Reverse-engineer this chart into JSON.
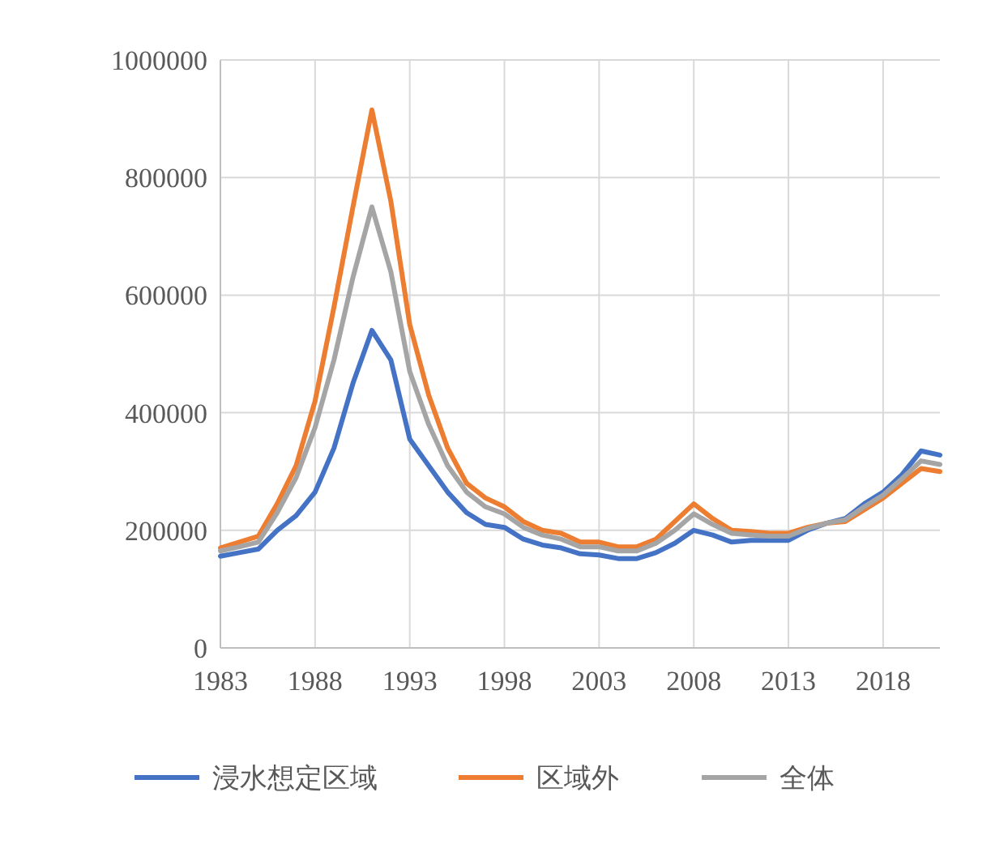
{
  "chart_data": {
    "type": "line",
    "x": [
      1983,
      1984,
      1985,
      1986,
      1987,
      1988,
      1989,
      1990,
      1991,
      1992,
      1993,
      1994,
      1995,
      1996,
      1997,
      1998,
      1999,
      2000,
      2001,
      2002,
      2003,
      2004,
      2005,
      2006,
      2007,
      2008,
      2009,
      2010,
      2011,
      2012,
      2013,
      2014,
      2015,
      2016,
      2017,
      2018,
      2019,
      2020,
      2021
    ],
    "series": [
      {
        "name": "浸水想定区域",
        "color": "#4472c4",
        "values": [
          156000,
          162000,
          168000,
          200000,
          225000,
          265000,
          340000,
          450000,
          540000,
          490000,
          355000,
          310000,
          265000,
          230000,
          210000,
          205000,
          185000,
          175000,
          170000,
          160000,
          158000,
          152000,
          152000,
          162000,
          178000,
          200000,
          192000,
          180000,
          183000,
          183000,
          183000,
          200000,
          212000,
          220000,
          245000,
          265000,
          295000,
          335000,
          328000
        ]
      },
      {
        "name": "区域外",
        "color": "#ed7d31",
        "values": [
          170000,
          180000,
          190000,
          245000,
          310000,
          420000,
          580000,
          750000,
          915000,
          760000,
          550000,
          430000,
          340000,
          280000,
          255000,
          240000,
          215000,
          200000,
          195000,
          180000,
          180000,
          172000,
          172000,
          185000,
          215000,
          245000,
          220000,
          200000,
          198000,
          195000,
          195000,
          205000,
          212000,
          215000,
          235000,
          255000,
          280000,
          305000,
          300000
        ]
      },
      {
        "name": "全体",
        "color": "#a5a5a5",
        "values": [
          165000,
          172000,
          180000,
          230000,
          290000,
          375000,
          490000,
          630000,
          750000,
          640000,
          470000,
          380000,
          310000,
          265000,
          240000,
          228000,
          205000,
          192000,
          185000,
          172000,
          172000,
          165000,
          165000,
          178000,
          200000,
          228000,
          210000,
          195000,
          192000,
          190000,
          190000,
          203000,
          212000,
          218000,
          240000,
          260000,
          288000,
          318000,
          312000
        ]
      }
    ],
    "xlim": [
      1983,
      2021
    ],
    "xticks": [
      1983,
      1988,
      1993,
      1998,
      2003,
      2008,
      2013,
      2018
    ],
    "ylim": [
      0,
      1000000
    ],
    "yticks": [
      0,
      200000,
      400000,
      600000,
      800000,
      1000000
    ],
    "grid": true,
    "legend": "bottom",
    "marker": "none",
    "line_style": "solid"
  }
}
